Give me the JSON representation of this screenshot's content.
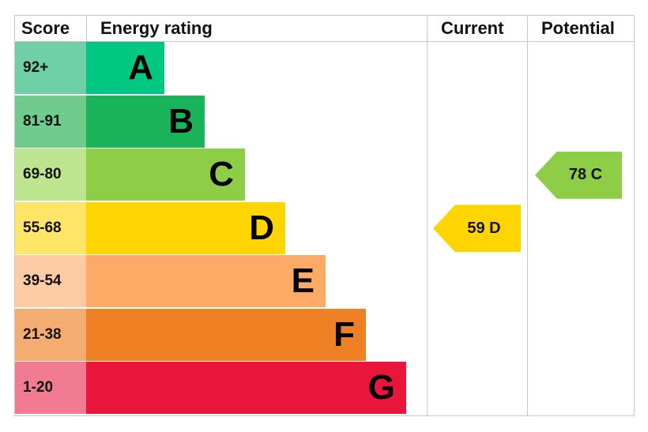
{
  "chart_data": {
    "type": "bar",
    "headers": {
      "score": "Score",
      "rating": "Energy rating",
      "current": "Current",
      "potential": "Potential"
    },
    "bands": [
      {
        "score": "92+",
        "letter": "A",
        "color": "#00c781",
        "score_color": "#6fcfa6"
      },
      {
        "score": "81-91",
        "letter": "B",
        "color": "#19b459",
        "score_color": "#6fcc8c"
      },
      {
        "score": "69-80",
        "letter": "C",
        "color": "#8dce46",
        "score_color": "#bde48f"
      },
      {
        "score": "55-68",
        "letter": "D",
        "color": "#ffd500",
        "score_color": "#ffe566"
      },
      {
        "score": "39-54",
        "letter": "E",
        "color": "#fcaa65",
        "score_color": "#fdcca4"
      },
      {
        "score": "21-38",
        "letter": "F",
        "color": "#ef8023",
        "score_color": "#f5ac70"
      },
      {
        "score": "1-20",
        "letter": "G",
        "color": "#e9153b",
        "score_color": "#f17b90"
      }
    ],
    "current": {
      "value": 59,
      "band": "D",
      "label": "59 D",
      "color": "#ffd500"
    },
    "potential": {
      "value": 78,
      "band": "C",
      "label": "78 C",
      "color": "#8dce46"
    }
  }
}
